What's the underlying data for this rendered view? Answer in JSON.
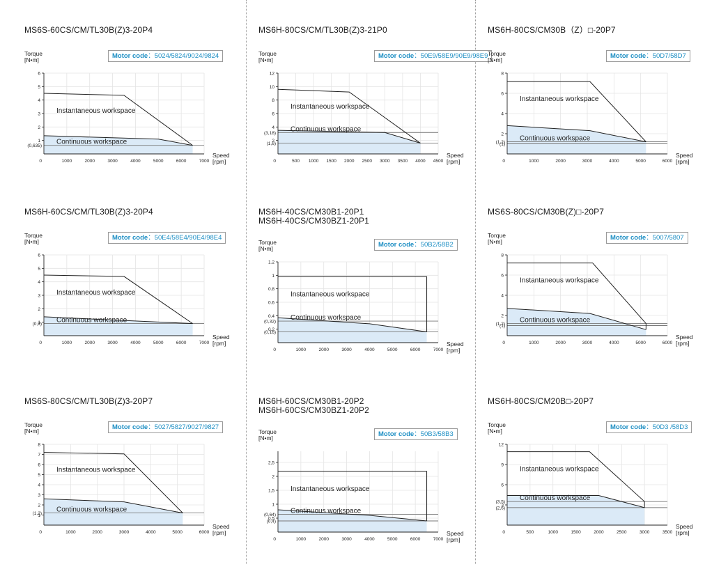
{
  "ui": {
    "torque_label": "Torque",
    "torque_unit": "[N•m]",
    "speed_label": "Speed",
    "speed_unit": "[rpm]",
    "motor_code_label": "Motor code",
    "region_instantaneous": "Instantaneous workspace",
    "region_continuous": "Continuous workspace",
    "colors": {
      "fill": "#dbeaf7",
      "line": "#222222",
      "grid": "#e4e4e4",
      "ref_line": "#777777",
      "accent": "#1e8fc4",
      "border": "#9a9a9a"
    }
  },
  "chart_data": [
    {
      "type": "area",
      "title": [
        "MS6S-60CS/CM/TL30B(Z)3-20P4"
      ],
      "motor_codes": "5024/5824/9024/9824",
      "xlabel": "Speed [rpm]",
      "ylabel": "Torque [N•m]",
      "xlim": [
        0,
        7000
      ],
      "ylim": [
        0,
        6
      ],
      "xticks": [
        0,
        1000,
        2000,
        3000,
        4000,
        5000,
        6000,
        7000
      ],
      "yticks": [
        1,
        2,
        3,
        4,
        5,
        6
      ],
      "grid": true,
      "instantaneous": [
        [
          0,
          4.5
        ],
        [
          3500,
          4.35
        ],
        [
          6500,
          0.635
        ]
      ],
      "continuous": [
        [
          0,
          1.35
        ],
        [
          5000,
          1.1
        ],
        [
          6500,
          0.635
        ]
      ],
      "ref_lines": [
        {
          "y": 0.635,
          "label": "(0,635)"
        }
      ]
    },
    {
      "type": "area",
      "title": [
        "MS6H-80CS/CM/TL30B(Z)3-21P0"
      ],
      "motor_codes": "50E9/58E9/90E9/98E9",
      "xlabel": "Speed [rpm]",
      "ylabel": "Torque [N•m]",
      "xlim": [
        0,
        4500
      ],
      "ylim": [
        0,
        12
      ],
      "xticks": [
        0,
        500,
        1000,
        1500,
        2000,
        2500,
        3000,
        3500,
        4000,
        4500
      ],
      "yticks": [
        2,
        4,
        6,
        8,
        10,
        12
      ],
      "grid": true,
      "instantaneous": [
        [
          0,
          9.6
        ],
        [
          2000,
          9.2
        ],
        [
          4000,
          1.6
        ]
      ],
      "continuous": [
        [
          0,
          3.5
        ],
        [
          3000,
          3.18
        ],
        [
          4000,
          1.6
        ]
      ],
      "ref_lines": [
        {
          "y": 3.18,
          "label": "(3,18)"
        },
        {
          "y": 1.6,
          "label": "(1,6)"
        }
      ]
    },
    {
      "type": "area",
      "title": [
        "MS6H-80CS/CM30B（Z）□-20P7"
      ],
      "motor_codes": "50D7/58D7",
      "xlabel": "Speed [rpm]",
      "ylabel": "Torque [N•m]",
      "xlim": [
        0,
        6000
      ],
      "ylim": [
        0,
        8
      ],
      "xticks": [
        0,
        1000,
        2000,
        3000,
        4000,
        5000,
        6000
      ],
      "yticks": [
        2,
        4,
        6,
        8
      ],
      "grid": true,
      "instantaneous": [
        [
          0,
          7.16
        ],
        [
          3100,
          7.16
        ],
        [
          5200,
          1.2
        ]
      ],
      "continuous": [
        [
          0,
          2.8
        ],
        [
          3100,
          2.3
        ],
        [
          5200,
          1.2
        ]
      ],
      "ref_lines": [
        {
          "y": 1.2,
          "label": "(1,2)"
        },
        {
          "y": 1.0,
          "label": "(1)"
        }
      ]
    },
    {
      "type": "area",
      "title": [
        "MS6H-60CS/CM/TL30B(Z)3-20P4"
      ],
      "motor_codes": "50E4/58E4/90E4/98E4",
      "xlabel": "Speed [rpm]",
      "ylabel": "Torque [N•m]",
      "xlim": [
        0,
        7000
      ],
      "ylim": [
        0,
        6
      ],
      "xticks": [
        0,
        1000,
        2000,
        3000,
        4000,
        5000,
        6000,
        7000
      ],
      "yticks": [
        1,
        2,
        3,
        4,
        5,
        6
      ],
      "grid": true,
      "instantaneous": [
        [
          0,
          4.5
        ],
        [
          3500,
          4.4
        ],
        [
          6500,
          0.9
        ]
      ],
      "continuous": [
        [
          0,
          1.4
        ],
        [
          6500,
          0.9
        ]
      ],
      "ref_lines": [
        {
          "y": 0.9,
          "label": "(0,9)"
        }
      ]
    },
    {
      "type": "area",
      "title": [
        "MS6H-40CS/CM30B1-20P1",
        "MS6H-40CS/CM30BZ1-20P1"
      ],
      "motor_codes": "50B2/58B2",
      "xlabel": "Speed [rpm]",
      "ylabel": "Torque [N•m]",
      "xlim": [
        0,
        7000
      ],
      "ylim": [
        0,
        1.2
      ],
      "xticks": [
        0,
        1000,
        2000,
        3000,
        4000,
        5000,
        6000,
        7000
      ],
      "yticks": [
        0.2,
        0.4,
        0.6,
        0.8,
        1,
        1.2
      ],
      "ytick_labels": [
        "0.2",
        "0.4",
        "0.6",
        "0.8",
        "1",
        "1.2"
      ],
      "grid": true,
      "instantaneous": [
        [
          0,
          0.98
        ],
        [
          6500,
          0.98
        ],
        [
          6500,
          0.16
        ]
      ],
      "continuous": [
        [
          0,
          0.37
        ],
        [
          4000,
          0.28
        ],
        [
          6500,
          0.16
        ]
      ],
      "ref_lines": [
        {
          "y": 0.32,
          "label": "(0,32)"
        },
        {
          "y": 0.16,
          "label": "(0,16)"
        }
      ]
    },
    {
      "type": "area",
      "title": [
        "MS6S-80CS/CM30B(Z)□-20P7"
      ],
      "motor_codes": "5007/5807",
      "xlabel": "Speed [rpm]",
      "ylabel": "Torque [N•m]",
      "xlim": [
        0,
        6000
      ],
      "ylim": [
        0,
        8
      ],
      "xticks": [
        0,
        1000,
        2000,
        3000,
        4000,
        5000,
        6000
      ],
      "yticks": [
        2,
        4,
        6,
        8
      ],
      "grid": true,
      "instantaneous": [
        [
          0,
          7.2
        ],
        [
          3200,
          7.2
        ],
        [
          5200,
          1.2
        ],
        [
          5200,
          0.6
        ]
      ],
      "continuous": [
        [
          0,
          2.7
        ],
        [
          3100,
          2.2
        ],
        [
          5200,
          0.6
        ]
      ],
      "ref_lines": [
        {
          "y": 1.2,
          "label": "(1,2)"
        },
        {
          "y": 1.0,
          "label": "(1)"
        }
      ]
    },
    {
      "type": "area",
      "title": [
        "MS6S-80CS/CM/TL30B(Z)3-20P7"
      ],
      "motor_codes": "5027/5827/9027/9827",
      "xlabel": "Speed [rpm]",
      "ylabel": "Torque [N•m]",
      "xlim": [
        0,
        6000
      ],
      "ylim": [
        0,
        8
      ],
      "xticks": [
        0,
        1000,
        2000,
        3000,
        4000,
        5000,
        6000
      ],
      "yticks": [
        1,
        2,
        3,
        4,
        5,
        6,
        7,
        8
      ],
      "grid": true,
      "instantaneous": [
        [
          0,
          7.2
        ],
        [
          3000,
          7.05
        ],
        [
          5200,
          1.2
        ]
      ],
      "continuous": [
        [
          0,
          2.6
        ],
        [
          3000,
          2.3
        ],
        [
          5200,
          1.2
        ]
      ],
      "ref_lines": [
        {
          "y": 1.2,
          "label": "(1,2)"
        }
      ]
    },
    {
      "type": "area",
      "title": [
        "MS6H-60CS/CM30B1-20P2",
        "MS6H-60CS/CM30BZ1-20P2"
      ],
      "motor_codes": "50B3/58B3",
      "xlabel": "Speed [rpm]",
      "ylabel": "Torque [N•m]",
      "xlim": [
        0,
        7000
      ],
      "ylim": [
        0,
        2.9
      ],
      "xticks": [
        0,
        1000,
        2000,
        3000,
        4000,
        5000,
        6000,
        7000
      ],
      "yticks": [
        0.5,
        1,
        1.5,
        2,
        2.5
      ],
      "ytick_labels": [
        "0,5",
        "1",
        "1,5",
        "2",
        "2,5"
      ],
      "grid": true,
      "instantaneous": [
        [
          0,
          2.18
        ],
        [
          6500,
          2.18
        ],
        [
          6500,
          0.4
        ]
      ],
      "continuous": [
        [
          0,
          0.8
        ],
        [
          4000,
          0.6
        ],
        [
          6500,
          0.4
        ]
      ],
      "ref_lines": [
        {
          "y": 0.64,
          "label": "(0,64)"
        },
        {
          "y": 0.4,
          "label": "(0,4)"
        }
      ]
    },
    {
      "type": "area",
      "title": [
        "MS6H-80CS/CM20B□-20P7"
      ],
      "motor_codes": "50D3 /58D3",
      "xlabel": "Speed [rpm]",
      "ylabel": "Torque [N•m]",
      "xlim": [
        0,
        3500
      ],
      "ylim": [
        0,
        12
      ],
      "xticks": [
        0,
        500,
        1000,
        1500,
        2000,
        2500,
        3000,
        3500
      ],
      "yticks": [
        3,
        6,
        9,
        12
      ],
      "grid": true,
      "instantaneous": [
        [
          0,
          10.9
        ],
        [
          1800,
          10.9
        ],
        [
          3000,
          3.5
        ],
        [
          3000,
          2.6
        ]
      ],
      "continuous": [
        [
          0,
          4.4
        ],
        [
          2000,
          4.4
        ],
        [
          3000,
          2.6
        ]
      ],
      "ref_lines": [
        {
          "y": 3.5,
          "label": "(3,5)"
        },
        {
          "y": 2.6,
          "label": "(2,6)"
        }
      ]
    }
  ]
}
